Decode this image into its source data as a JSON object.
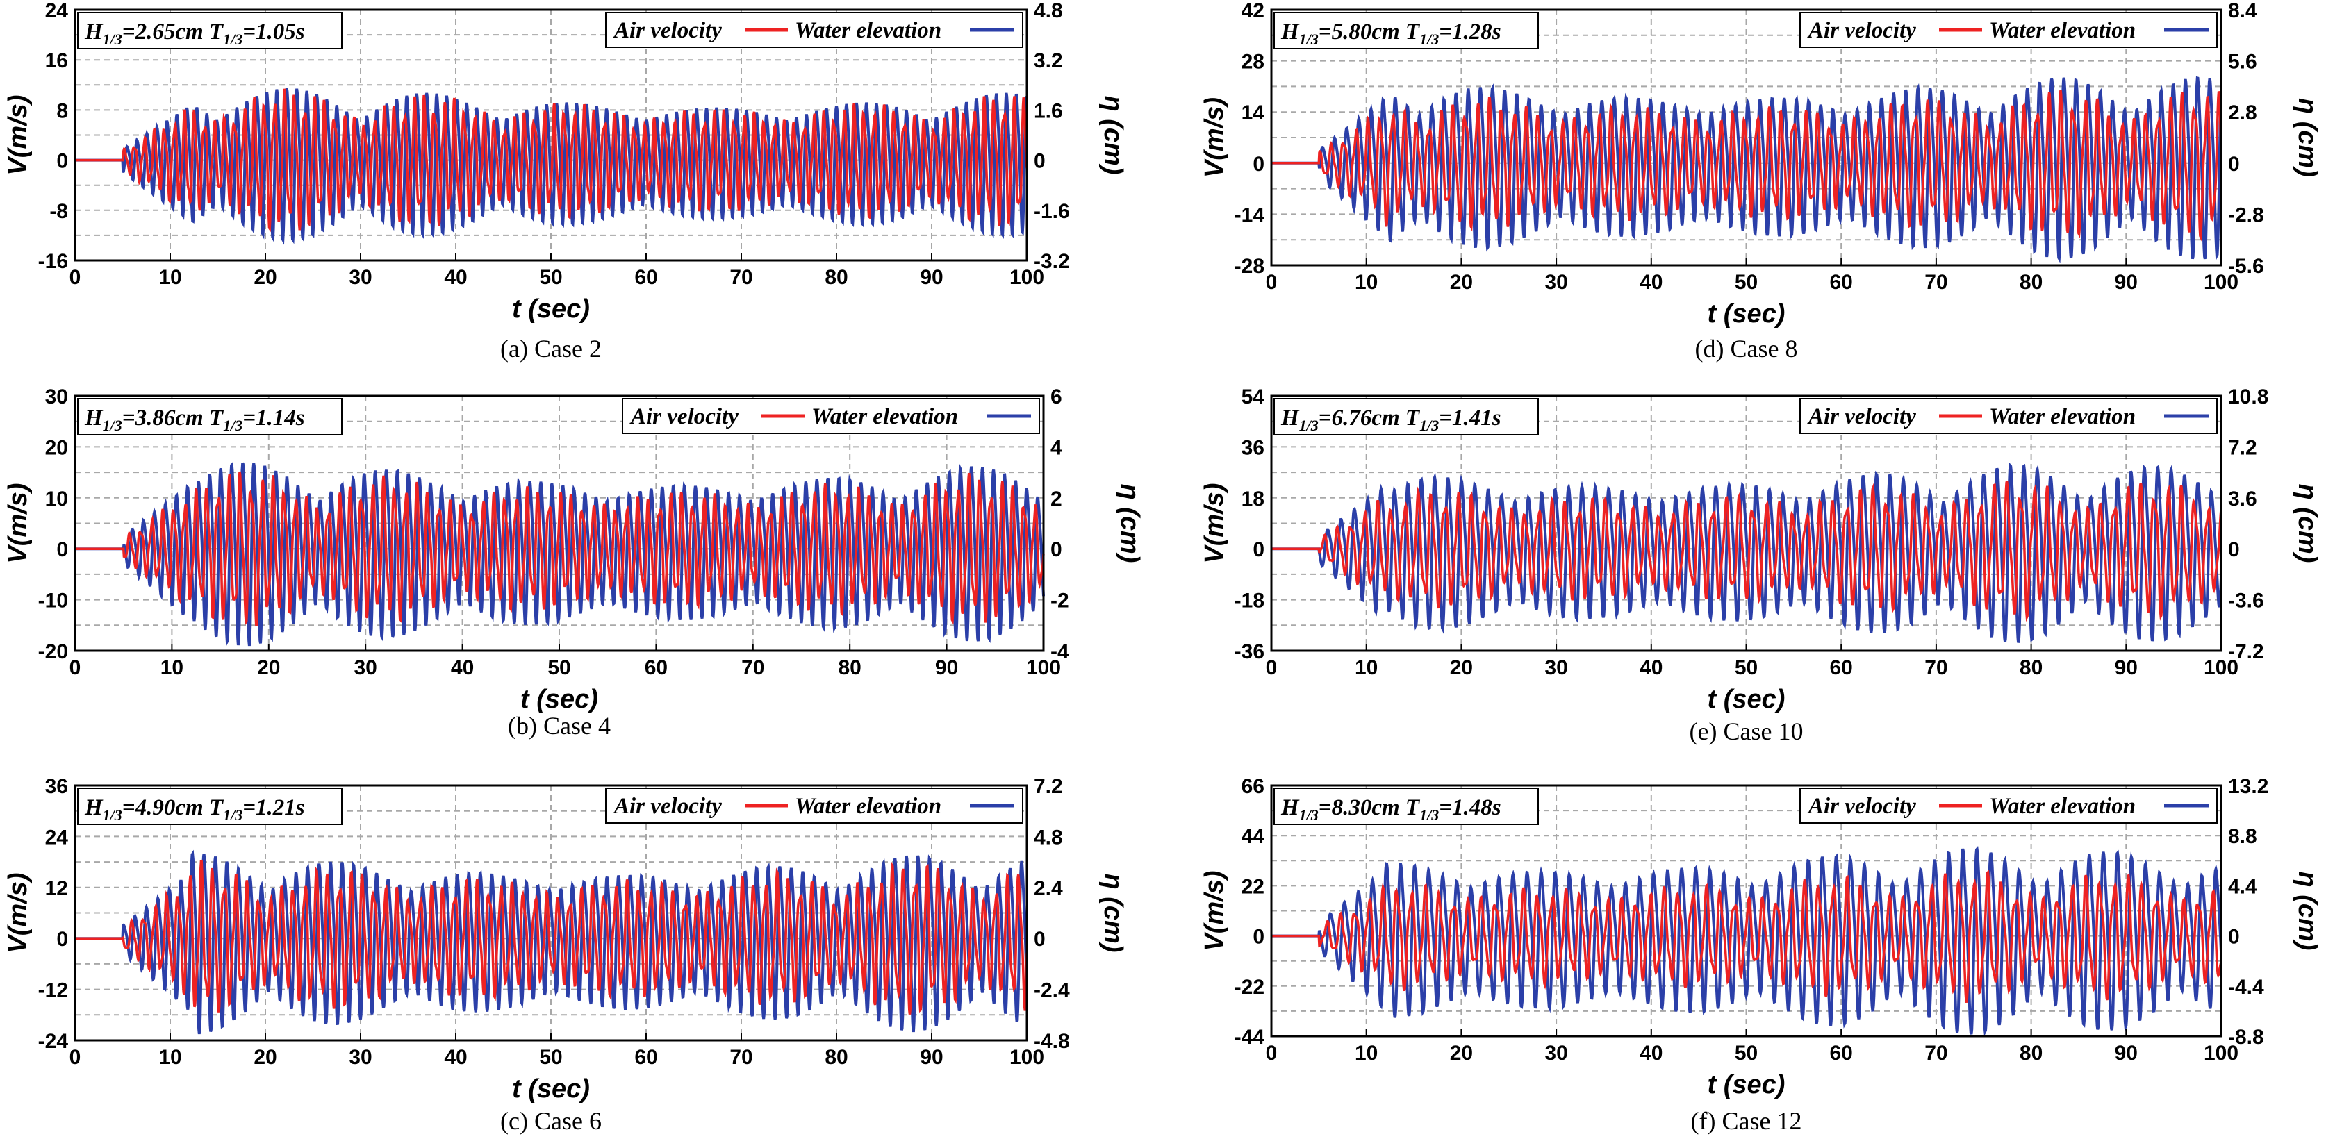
{
  "figure": {
    "xlabel": "t (sec)",
    "ylabel_left": "V(m/s)",
    "ylabel_right": "η (cm)"
  },
  "chart_data": [
    {
      "type": "line",
      "caption": "(a)  Case 2",
      "title_H": "2.65cm",
      "title_T": "1.05s",
      "legend": [
        "Air velocity",
        "Water elevation"
      ],
      "colors": [
        "#ee2222",
        "#2b3fa8"
      ],
      "xlim": [
        0,
        100
      ],
      "xticks": [
        0,
        10,
        20,
        30,
        40,
        50,
        60,
        70,
        80,
        90,
        100
      ],
      "ylim_left": [
        -16,
        24
      ],
      "yticks_left": [
        -16,
        -8,
        0,
        8,
        16,
        24
      ],
      "ylim_right": [
        -3.2,
        4.8
      ],
      "yticks_right": [
        -3.2,
        -1.6,
        0,
        1.6,
        3.2,
        4.8
      ],
      "wave_period_s": 1.05,
      "velocity_amplitude_max": 11,
      "elevation_amplitude_max": 2.5
    },
    {
      "type": "line",
      "caption": "(b)  Case 4",
      "title_H": "3.86cm",
      "title_T": "1.14s",
      "legend": [
        "Air velocity",
        "Water elevation"
      ],
      "colors": [
        "#ee2222",
        "#2b3fa8"
      ],
      "xlim": [
        0,
        100
      ],
      "xticks": [
        0,
        10,
        20,
        30,
        40,
        50,
        60,
        70,
        80,
        90,
        100
      ],
      "ylim_left": [
        -20,
        30
      ],
      "yticks_left": [
        -20,
        -10,
        0,
        10,
        20,
        30
      ],
      "ylim_right": [
        -4,
        6
      ],
      "yticks_right": [
        -4,
        -2,
        0,
        2,
        4,
        6
      ],
      "wave_period_s": 1.14,
      "velocity_amplitude_max": 15,
      "elevation_amplitude_max": 3.7
    },
    {
      "type": "line",
      "caption": "(c)  Case 6",
      "title_H": "4.90cm",
      "title_T": "1.21s",
      "legend": [
        "Air velocity",
        "Water elevation"
      ],
      "colors": [
        "#ee2222",
        "#2b3fa8"
      ],
      "xlim": [
        0,
        100
      ],
      "xticks": [
        0,
        10,
        20,
        30,
        40,
        50,
        60,
        70,
        80,
        90,
        100
      ],
      "ylim_left": [
        -24,
        36
      ],
      "yticks_left": [
        -24,
        -12,
        0,
        12,
        24,
        36
      ],
      "ylim_right": [
        -4.8,
        7.2
      ],
      "yticks_right": [
        -4.8,
        -2.4,
        0,
        2.4,
        4.8,
        7.2
      ],
      "wave_period_s": 1.21,
      "velocity_amplitude_max": 18,
      "elevation_amplitude_max": 4.4
    },
    {
      "type": "line",
      "caption": "(d)  Case 8",
      "title_H": "5.80cm",
      "title_T": "1.28s",
      "legend": [
        "Air velocity",
        "Water elevation"
      ],
      "colors": [
        "#ee2222",
        "#2b3fa8"
      ],
      "xlim": [
        0,
        100
      ],
      "xticks": [
        0,
        10,
        20,
        30,
        40,
        50,
        60,
        70,
        80,
        90,
        100
      ],
      "ylim_left": [
        -28,
        42
      ],
      "yticks_left": [
        -28,
        -14,
        0,
        14,
        28,
        42
      ],
      "ylim_right": [
        -5.6,
        8.4
      ],
      "yticks_right": [
        -5.6,
        -2.8,
        0,
        2.8,
        5.6,
        8.4
      ],
      "wave_period_s": 1.28,
      "velocity_amplitude_max": 20,
      "elevation_amplitude_max": 5.2
    },
    {
      "type": "line",
      "caption": "(e)  Case 10",
      "title_H": "6.76cm",
      "title_T": "1.41s",
      "legend": [
        "Air velocity",
        "Water elevation"
      ],
      "colors": [
        "#ee2222",
        "#2b3fa8"
      ],
      "xlim": [
        0,
        100
      ],
      "xticks": [
        0,
        10,
        20,
        30,
        40,
        50,
        60,
        70,
        80,
        90,
        100
      ],
      "ylim_left": [
        -36,
        54
      ],
      "yticks_left": [
        -36,
        -18,
        0,
        18,
        36,
        54
      ],
      "ylim_right": [
        -7.2,
        10.8
      ],
      "yticks_right": [
        -7.2,
        -3.6,
        0,
        3.6,
        7.2,
        10.8
      ],
      "wave_period_s": 1.41,
      "velocity_amplitude_max": 24,
      "elevation_amplitude_max": 6.5
    },
    {
      "type": "line",
      "caption": "(f)  Case 12",
      "title_H": "8.30cm",
      "title_T": "1.48s",
      "legend": [
        "Air velocity",
        "Water elevation"
      ],
      "colors": [
        "#ee2222",
        "#2b3fa8"
      ],
      "xlim": [
        0,
        100
      ],
      "xticks": [
        0,
        10,
        20,
        30,
        40,
        50,
        60,
        70,
        80,
        90,
        100
      ],
      "ylim_left": [
        -44,
        66
      ],
      "yticks_left": [
        -44,
        -22,
        0,
        22,
        44,
        66
      ],
      "ylim_right": [
        -8.8,
        13.2
      ],
      "yticks_right": [
        -8.8,
        -4.4,
        0,
        4.4,
        8.8,
        13.2
      ],
      "wave_period_s": 1.48,
      "velocity_amplitude_max": 28,
      "elevation_amplitude_max": 8.4
    }
  ]
}
